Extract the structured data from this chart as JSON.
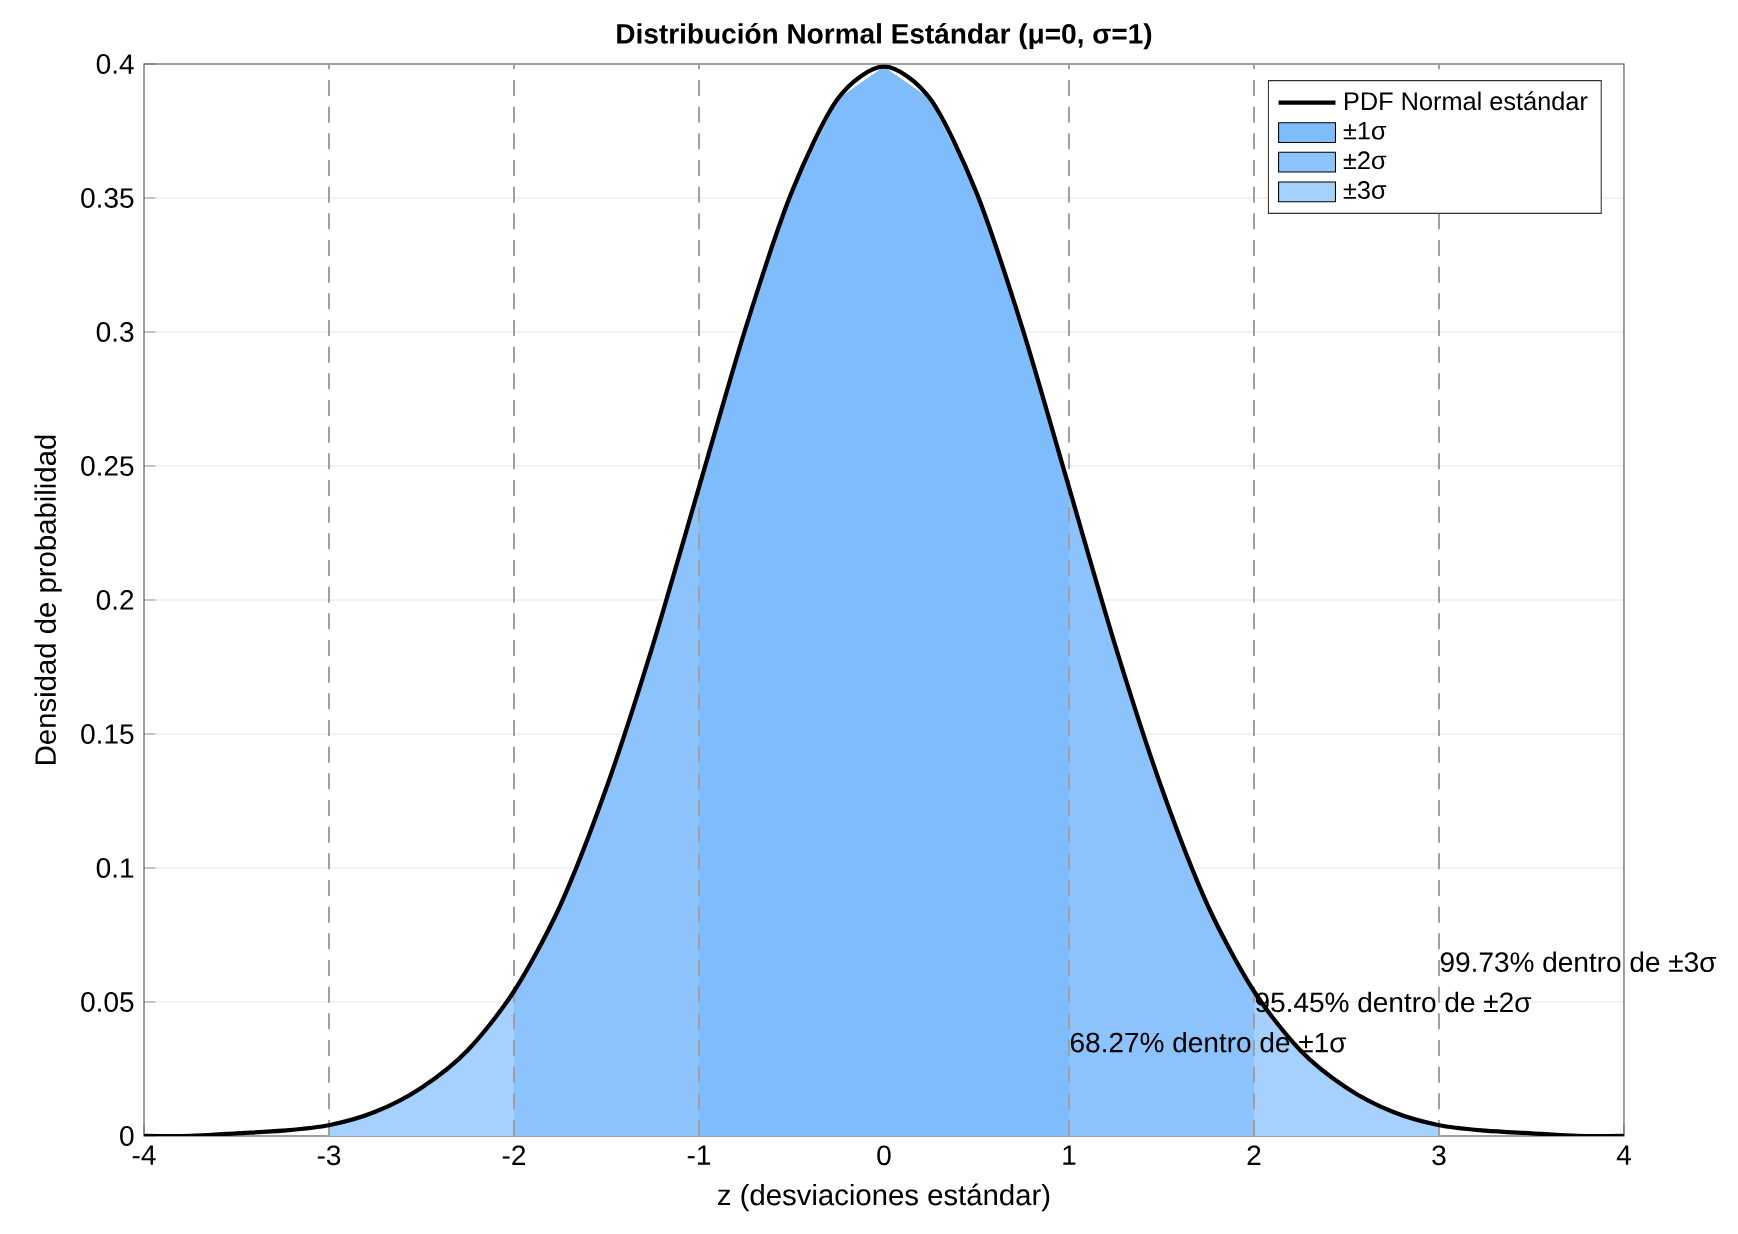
{
  "chart_data": {
    "type": "line",
    "title": "Distribución Normal Estándar (μ=0, σ=1)",
    "xlabel": "z (desviaciones estándar)",
    "ylabel": "Densidad de probabilidad",
    "xlim": [
      -4,
      4
    ],
    "ylim": [
      0,
      0.4
    ],
    "xticks": [
      -4,
      -3,
      -2,
      -1,
      0,
      1,
      2,
      3,
      4
    ],
    "yticks": [
      0,
      0.05,
      0.1,
      0.15,
      0.2,
      0.25,
      0.3,
      0.35,
      0.4
    ],
    "grid": "y",
    "legend": "top right",
    "series": [
      {
        "name": "PDF Normal estándar",
        "color": "#000000",
        "x": [
          -4,
          -3.75,
          -3.5,
          -3.25,
          -3,
          -2.75,
          -2.5,
          -2.25,
          -2,
          -1.75,
          -1.5,
          -1.25,
          -1,
          -0.75,
          -0.5,
          -0.25,
          0,
          0.25,
          0.5,
          0.75,
          1,
          1.25,
          1.5,
          1.75,
          2,
          2.25,
          2.5,
          2.75,
          3,
          3.25,
          3.5,
          3.75,
          4
        ],
        "values": [
          0.0,
          0.0,
          0.001,
          0.002,
          0.004,
          0.009,
          0.018,
          0.032,
          0.054,
          0.086,
          0.13,
          0.183,
          0.242,
          0.301,
          0.352,
          0.387,
          0.399,
          0.387,
          0.352,
          0.301,
          0.242,
          0.183,
          0.13,
          0.086,
          0.054,
          0.032,
          0.018,
          0.009,
          0.004,
          0.002,
          0.001,
          0.0,
          0.0
        ]
      },
      {
        "name": "±1σ",
        "type": "area",
        "color": "#7fbcfc",
        "x": [
          -1,
          -0.75,
          -0.5,
          -0.25,
          0,
          0.25,
          0.5,
          0.75,
          1
        ],
        "values": [
          0.242,
          0.301,
          0.352,
          0.387,
          0.399,
          0.387,
          0.352,
          0.301,
          0.242
        ]
      },
      {
        "name": "±2σ",
        "type": "area",
        "color": "#8cc3fd",
        "x": [
          -2,
          -1.75,
          -1.5,
          -1.25,
          -1,
          -0.75,
          -0.5,
          -0.25,
          0,
          0.25,
          0.5,
          0.75,
          1,
          1.25,
          1.5,
          1.75,
          2
        ],
        "values": [
          0.054,
          0.086,
          0.13,
          0.183,
          0.242,
          null,
          null,
          null,
          null,
          null,
          null,
          null,
          0.242,
          0.183,
          0.13,
          0.086,
          0.054
        ]
      },
      {
        "name": "±3σ",
        "type": "area",
        "color": "#a6d0fd",
        "x": [
          -3,
          -2.75,
          -2.5,
          -2.25,
          -2,
          -1.75,
          -1.5,
          -1.25,
          -1,
          -0.75,
          -0.5,
          -0.25,
          0,
          0.25,
          0.5,
          0.75,
          1,
          1.25,
          1.5,
          1.75,
          2,
          2.25,
          2.5,
          2.75,
          3
        ],
        "values": [
          0.004,
          0.009,
          0.018,
          0.032,
          0.054,
          null,
          null,
          null,
          null,
          null,
          null,
          null,
          null,
          null,
          null,
          null,
          null,
          null,
          null,
          null,
          0.054,
          0.032,
          0.018,
          0.009,
          0.004
        ]
      }
    ],
    "ref_lines": [
      {
        "axis": "x",
        "value": -3,
        "color": "#a0a0a0",
        "line_style": "dashed"
      },
      {
        "axis": "x",
        "value": -2,
        "color": "#a0a0a0",
        "line_style": "dashed"
      },
      {
        "axis": "x",
        "value": -1,
        "color": "#a0a0a0",
        "line_style": "dashed"
      },
      {
        "axis": "x",
        "value": 1,
        "color": "#a0a0a0",
        "line_style": "dashed"
      },
      {
        "axis": "x",
        "value": 2,
        "color": "#a0a0a0",
        "line_style": "dashed"
      },
      {
        "axis": "x",
        "value": 3,
        "color": "#a0a0a0",
        "line_style": "dashed"
      }
    ],
    "annotations": [
      {
        "text": "68.27% dentro de ±1σ",
        "x": 1,
        "y": 0.035
      },
      {
        "text": "95.45% dentro de ±2σ",
        "x": 2,
        "y": 0.05
      },
      {
        "text": "99.73% dentro de ±3σ",
        "x": 3,
        "y": 0.065
      }
    ]
  }
}
